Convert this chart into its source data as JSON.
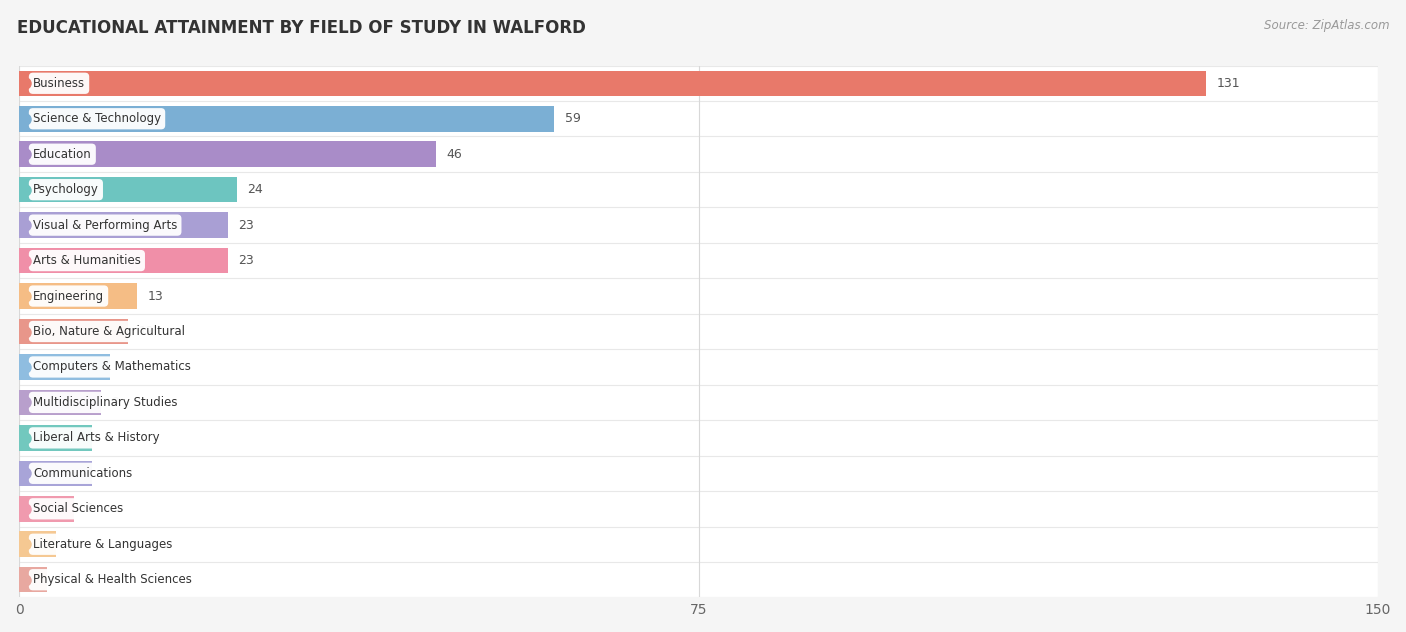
{
  "title": "EDUCATIONAL ATTAINMENT BY FIELD OF STUDY IN WALFORD",
  "source": "Source: ZipAtlas.com",
  "categories": [
    "Business",
    "Science & Technology",
    "Education",
    "Psychology",
    "Visual & Performing Arts",
    "Arts & Humanities",
    "Engineering",
    "Bio, Nature & Agricultural",
    "Computers & Mathematics",
    "Multidisciplinary Studies",
    "Liberal Arts & History",
    "Communications",
    "Social Sciences",
    "Literature & Languages",
    "Physical & Health Sciences"
  ],
  "values": [
    131,
    59,
    46,
    24,
    23,
    23,
    13,
    12,
    10,
    9,
    8,
    8,
    6,
    4,
    3
  ],
  "bar_colors": [
    "#E8796A",
    "#7BAFD4",
    "#A98CC8",
    "#6DC5C0",
    "#A99FD4",
    "#F08FA8",
    "#F5BD85",
    "#E8968A",
    "#8FBDE0",
    "#B89FCC",
    "#72C8BE",
    "#A8A4D8",
    "#F09AAE",
    "#F5C892",
    "#E8A8A0"
  ],
  "xlim": [
    0,
    150
  ],
  "xticks": [
    0,
    75,
    150
  ],
  "background_color": "#f5f5f5",
  "row_bg_color": "#ffffff",
  "row_sep_color": "#e8e8e8",
  "grid_color": "#d8d8d8",
  "title_fontsize": 12,
  "bar_height": 0.72,
  "value_label_color": "#555555",
  "label_text_color": "#333333"
}
